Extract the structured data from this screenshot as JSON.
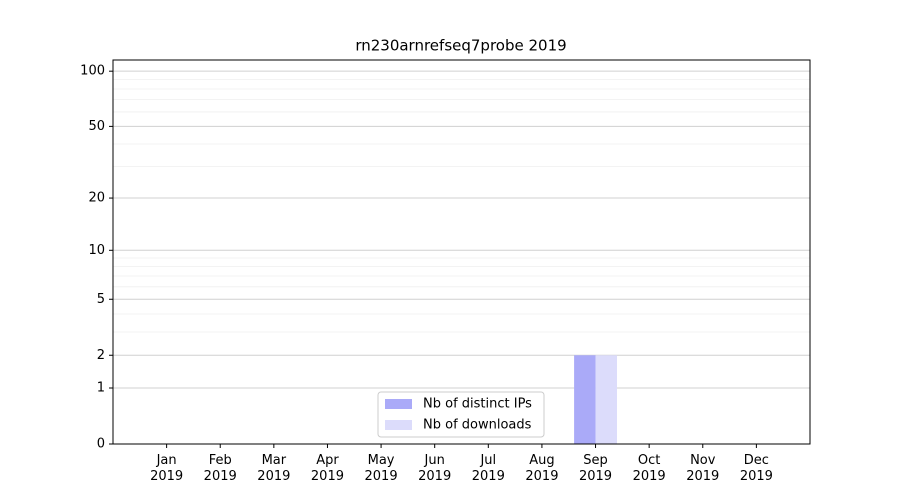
{
  "chart_data": {
    "type": "bar",
    "title": "rn230arnrefseq7probe 2019",
    "categories": [
      "Jan\n2019",
      "Feb\n2019",
      "Mar\n2019",
      "Apr\n2019",
      "May\n2019",
      "Jun\n2019",
      "Jul\n2019",
      "Aug\n2019",
      "Sep\n2019",
      "Oct\n2019",
      "Nov\n2019",
      "Dec\n2019"
    ],
    "series": [
      {
        "name": "Nb of distinct IPs",
        "color": "#aaaaf8",
        "values": [
          0,
          0,
          0,
          0,
          0,
          0,
          0,
          0,
          2,
          0,
          0,
          0
        ]
      },
      {
        "name": "Nb of downloads",
        "color": "#dcdcfb",
        "values": [
          0,
          0,
          0,
          0,
          0,
          0,
          0,
          0,
          2,
          0,
          0,
          0
        ]
      }
    ],
    "yscale": "log1p",
    "ylim": [
      0,
      115
    ],
    "yticks": [
      0,
      1,
      2,
      5,
      10,
      20,
      50,
      100
    ],
    "minor_yticks": [
      3,
      4,
      6,
      7,
      8,
      9,
      30,
      40,
      60,
      70,
      80,
      90
    ],
    "grid": true,
    "legend": "lower center"
  }
}
